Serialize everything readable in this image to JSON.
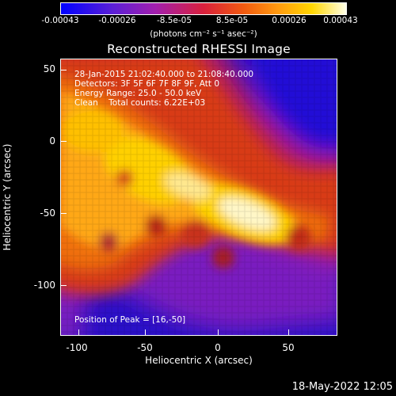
{
  "colorbar": {
    "ticks": [
      "-0.00043",
      "-0.00026",
      "-8.5e-05",
      "8.5e-05",
      "0.00026",
      "0.00043"
    ],
    "unit": "(photons cm⁻² s⁻¹ asec⁻²)"
  },
  "title": "Reconstructed RHESSI Image",
  "info": {
    "line1": "28-Jan-2015 21:02:40.000 to 21:08:40.000",
    "line2": "Detectors: 3F 5F 6F 7F 8F 9F, Att 0",
    "line3": "Energy Range: 25.0 - 50.0 keV",
    "line4": "Clean    Total counts: 6.22E+03"
  },
  "peak": "Position of Peak = [16,-50]",
  "axes": {
    "xlabel": "Heliocentric X (arcsec)",
    "ylabel": "Heliocentric Y (arcsec)",
    "xticks": [
      "-100",
      "-50",
      "0",
      "50"
    ],
    "yticks": [
      "50",
      "0",
      "-50",
      "-100"
    ]
  },
  "footer_date": "18-May-2022 12:05",
  "colors": {
    "background": "#000000",
    "text": "#ffffff"
  }
}
